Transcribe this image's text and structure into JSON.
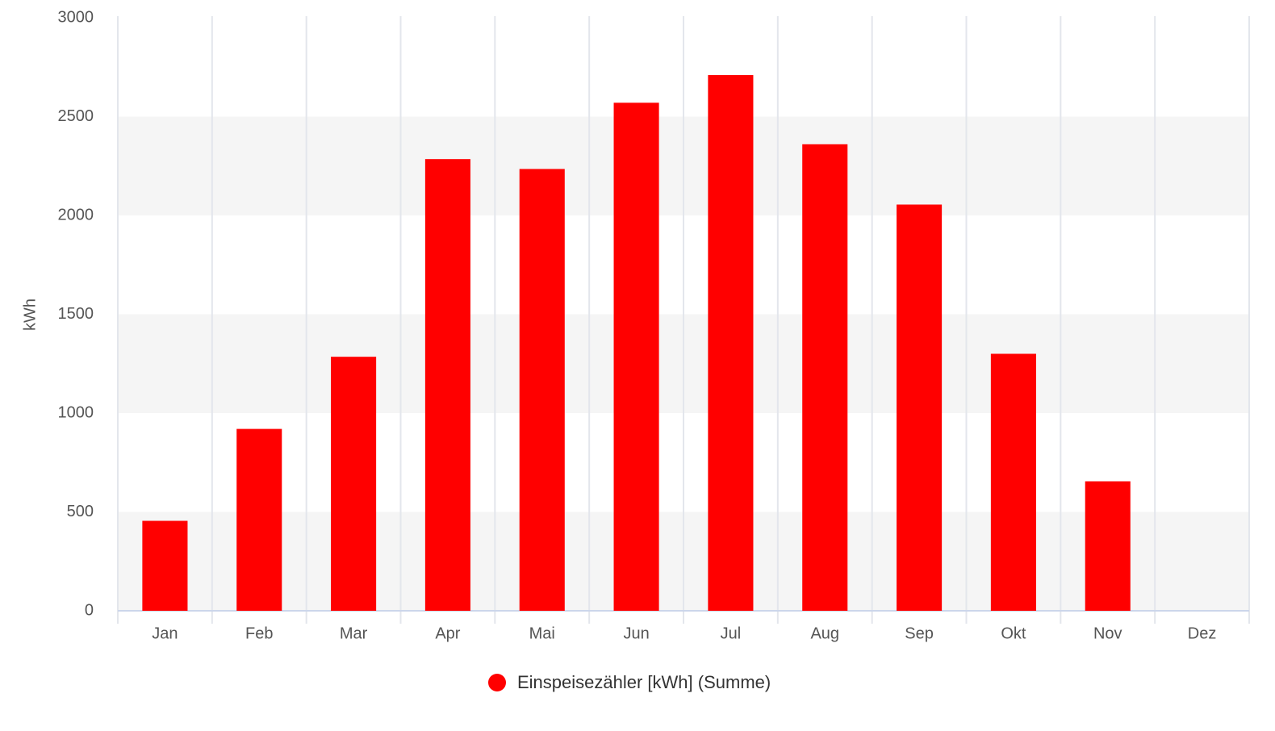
{
  "chart_data": {
    "type": "bar",
    "y_label": "kWh",
    "categories": [
      "Jan",
      "Feb",
      "Mar",
      "Apr",
      "Mai",
      "Jun",
      "Jul",
      "Aug",
      "Sep",
      "Okt",
      "Nov",
      "Dez"
    ],
    "series": [
      {
        "name": "Einspeisezähler [kWh] (Summe)",
        "color": "#ff0000",
        "values": [
          455,
          920,
          1285,
          2285,
          2235,
          2570,
          2710,
          2360,
          2055,
          1300,
          655,
          null
        ]
      }
    ],
    "ylim": [
      0,
      3000
    ],
    "yticks": [
      0,
      500,
      1000,
      1500,
      2000,
      2500,
      3000
    ],
    "grid": true,
    "legend": "bottom"
  }
}
